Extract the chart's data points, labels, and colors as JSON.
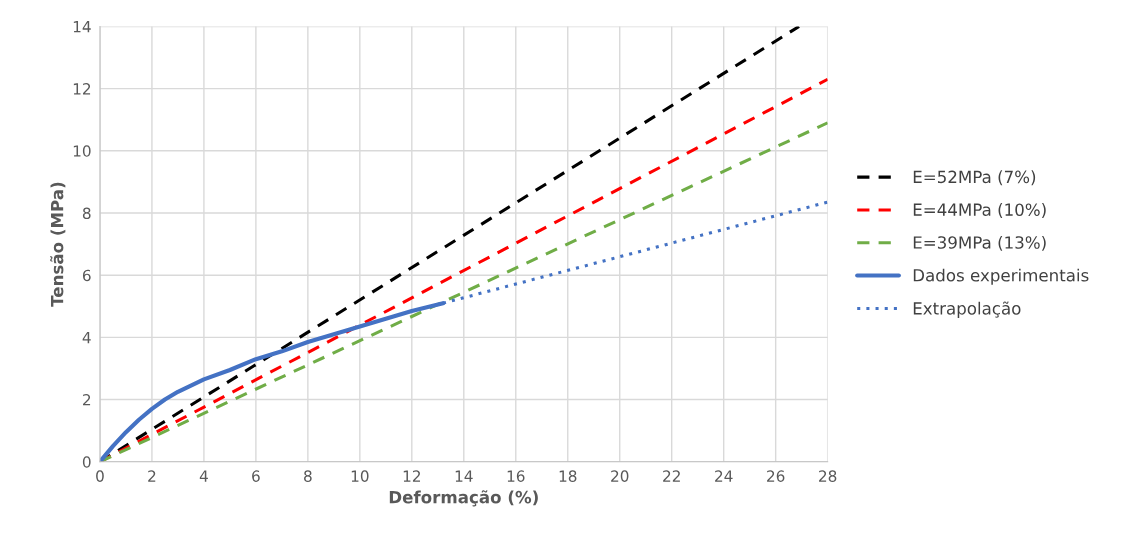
{
  "chart_data": {
    "type": "line",
    "xlabel": "Deformação (%)",
    "ylabel": "Tensão (MPa)",
    "xlim": [
      0,
      28
    ],
    "xticks": [
      0,
      2,
      4,
      6,
      8,
      10,
      12,
      14,
      16,
      18,
      20,
      22,
      24,
      26,
      28
    ],
    "ylim": [
      0,
      14
    ],
    "yticks": [
      0,
      2,
      4,
      6,
      8,
      10,
      12,
      14
    ],
    "grid": true,
    "legend": "right",
    "marker": "none",
    "series": [
      {
        "name": "E=52MPa (7%)",
        "color": "#000000",
        "line_style": "dashed",
        "x": [
          0,
          26.9
        ],
        "values": [
          0,
          14
        ]
      },
      {
        "name": "E=44MPa (10%)",
        "color": "#ff0000",
        "line_style": "dashed",
        "x": [
          0,
          28
        ],
        "values": [
          0,
          12.3
        ]
      },
      {
        "name": "E=39MPa (13%)",
        "color": "#70ad47",
        "line_style": "dashed",
        "x": [
          0,
          28
        ],
        "values": [
          0,
          10.9
        ]
      },
      {
        "name": "Dados experimentais",
        "color": "#4472c4",
        "line_style": "solid",
        "x": [
          0,
          0.5,
          1,
          1.5,
          2,
          2.5,
          3,
          4,
          5,
          6,
          7,
          8,
          9,
          10,
          11,
          12,
          13.2
        ],
        "values": [
          0,
          0.5,
          0.95,
          1.35,
          1.7,
          2.0,
          2.25,
          2.65,
          2.95,
          3.3,
          3.55,
          3.85,
          4.1,
          4.35,
          4.6,
          4.85,
          5.1
        ]
      },
      {
        "name": "Extrapolação",
        "color": "#4472c4",
        "line_style": "dotted",
        "x": [
          13.2,
          28
        ],
        "values": [
          5.1,
          8.35
        ]
      }
    ]
  }
}
